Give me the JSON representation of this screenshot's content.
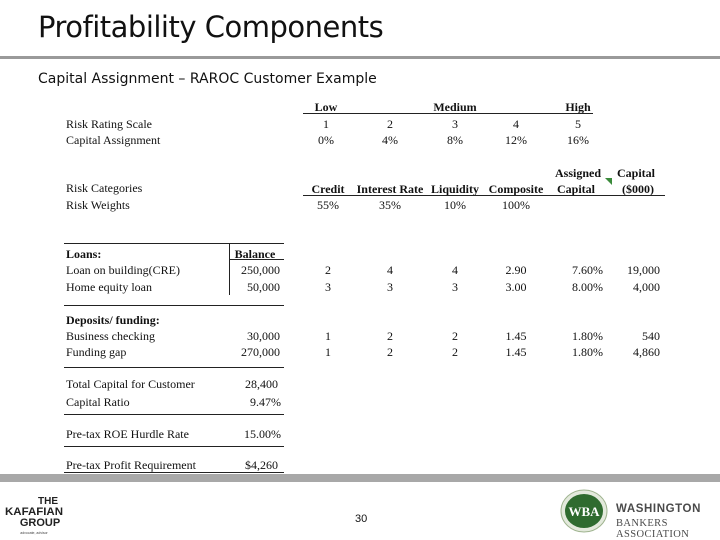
{
  "slide": {
    "title": "Profitability Components",
    "subtitle": "Capital Assignment – RAROC Customer Example",
    "page_number": "30"
  },
  "scale": {
    "header_low": "Low",
    "header_medium": "Medium",
    "header_high": "High",
    "row1_label": "Risk Rating Scale",
    "row2_label": "Capital Assignment",
    "ratings": [
      "1",
      "2",
      "3",
      "4",
      "5"
    ],
    "percents": [
      "0%",
      "4%",
      "8%",
      "12%",
      "16%"
    ]
  },
  "categories": {
    "label": "Risk Categories",
    "weights_label": "Risk Weights",
    "headers": [
      "Credit",
      "Interest Rate",
      "Liquidity",
      "Composite"
    ],
    "weights": [
      "55%",
      "35%",
      "10%",
      "100%"
    ],
    "assigned_l1": "Assigned",
    "assigned_l2": "Capital",
    "capital_l1": "Capital",
    "capital_l2": "($000)"
  },
  "balance_header": "Balance",
  "loans": {
    "label": "Loans:",
    "rows": [
      {
        "name": "Loan on building(CRE)",
        "balance": "250,000",
        "credit": "2",
        "ir": "4",
        "liq": "4",
        "comp": "2.90",
        "assigned": "7.60%",
        "capital": "19,000"
      },
      {
        "name": "Home equity loan",
        "balance": "50,000",
        "credit": "3",
        "ir": "3",
        "liq": "3",
        "comp": "3.00",
        "assigned": "8.00%",
        "capital": "4,000"
      }
    ]
  },
  "deposits": {
    "label": "Deposits/ funding:",
    "rows": [
      {
        "name": "Business checking",
        "balance": "30,000",
        "credit": "1",
        "ir": "2",
        "liq": "2",
        "comp": "1.45",
        "assigned": "1.80%",
        "capital": "540"
      },
      {
        "name": "Funding gap",
        "balance": "270,000",
        "credit": "1",
        "ir": "2",
        "liq": "2",
        "comp": "1.45",
        "assigned": "1.80%",
        "capital": "4,860"
      }
    ]
  },
  "summary": {
    "total_capital_label": "Total Capital for Customer",
    "total_capital_value": "28,400",
    "capital_ratio_label": "Capital Ratio",
    "capital_ratio_value": "9.47%",
    "hurdle_label": "Pre-tax ROE Hurdle Rate",
    "hurdle_value": "15.00%",
    "profit_label": "Pre-tax Profit Requirement",
    "profit_value": "$4,260"
  },
  "logos": {
    "left_l1": "THE",
    "left_l2": "KAFAFIAN",
    "left_l3": "GROUP",
    "left_tagline": "advocate, advisor",
    "right_mark": "WBA",
    "right_name": "WASHINGTON",
    "right_sub": "BANKERS ASSOCIATION"
  },
  "colors": {
    "wba_green": "#2f6b2f",
    "footer_bar": "#a8a8a8"
  }
}
